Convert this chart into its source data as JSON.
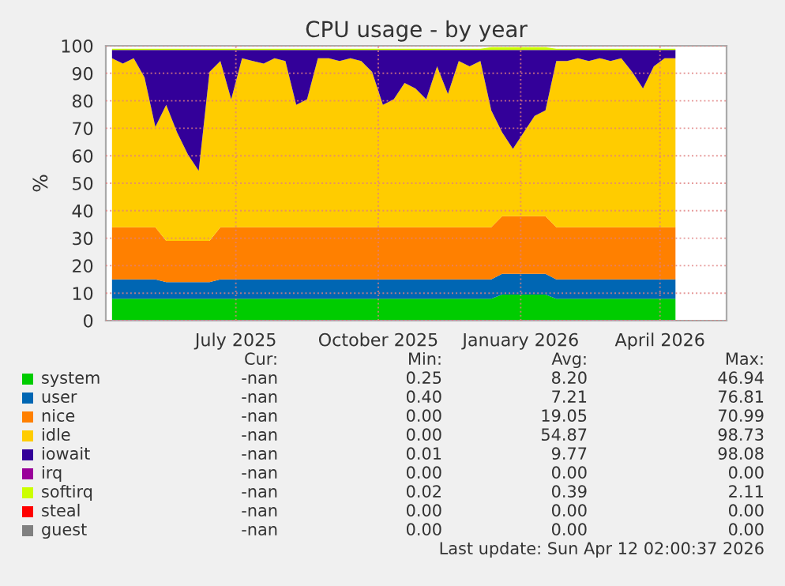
{
  "chart_data": {
    "type": "area",
    "stacked": true,
    "title": "CPU usage - by year",
    "ylabel": "%",
    "x": [
      "2025-04-12",
      "2025-04-19",
      "2025-04-26",
      "2025-05-03",
      "2025-05-10",
      "2025-05-17",
      "2025-05-24",
      "2025-05-31",
      "2025-06-07",
      "2025-06-14",
      "2025-06-21",
      "2025-06-28",
      "2025-07-05",
      "2025-07-12",
      "2025-07-19",
      "2025-07-26",
      "2025-08-02",
      "2025-08-09",
      "2025-08-16",
      "2025-08-23",
      "2025-08-30",
      "2025-09-06",
      "2025-09-13",
      "2025-09-20",
      "2025-09-27",
      "2025-10-04",
      "2025-10-11",
      "2025-10-18",
      "2025-10-25",
      "2025-11-01",
      "2025-11-08",
      "2025-11-15",
      "2025-11-22",
      "2025-11-29",
      "2025-12-06",
      "2025-12-13",
      "2025-12-20",
      "2025-12-27",
      "2026-01-03",
      "2026-01-10",
      "2026-01-17",
      "2026-01-24",
      "2026-01-31",
      "2026-02-07",
      "2026-02-14",
      "2026-02-21",
      "2026-02-28",
      "2026-03-07",
      "2026-03-14",
      "2026-03-21",
      "2026-03-28",
      "2026-04-04",
      "2026-04-11"
    ],
    "series": [
      {
        "name": "system",
        "color": "#00cc00",
        "values": [
          8,
          8,
          8,
          8,
          8,
          8,
          8,
          8,
          8,
          8,
          8,
          8,
          8,
          8,
          8,
          8,
          8,
          8,
          8,
          8,
          8,
          8,
          8,
          8,
          8,
          8,
          8,
          8,
          8,
          8,
          8,
          8,
          8,
          8,
          8,
          8,
          9.5,
          9.5,
          9.5,
          9.5,
          9.5,
          8,
          8,
          8,
          8,
          8,
          8,
          8,
          8,
          8,
          8,
          8,
          8
        ]
      },
      {
        "name": "user",
        "color": "#0066b3",
        "values": [
          7,
          7,
          7,
          7,
          7,
          6,
          6,
          6,
          6,
          6,
          7,
          7,
          7,
          7,
          7,
          7,
          7,
          7,
          7,
          7,
          7,
          7,
          7,
          7,
          7,
          7,
          7,
          7,
          7,
          7,
          7,
          7,
          7,
          7,
          7,
          7,
          7.5,
          7.5,
          7.5,
          7.5,
          7.5,
          7,
          7,
          7,
          7,
          7,
          7,
          7,
          7,
          7,
          7,
          7,
          7
        ]
      },
      {
        "name": "nice",
        "color": "#ff8000",
        "values": [
          19,
          19,
          19,
          19,
          19,
          15,
          15,
          15,
          15,
          15,
          19,
          19,
          19,
          19,
          19,
          19,
          19,
          19,
          19,
          19,
          19,
          19,
          19,
          19,
          19,
          19,
          19,
          19,
          19,
          19,
          19,
          19,
          19,
          19,
          19,
          19,
          21,
          21,
          21,
          21,
          21,
          19,
          19,
          19,
          19,
          19,
          19,
          19,
          19,
          19,
          19,
          19,
          19
        ]
      },
      {
        "name": "idle",
        "color": "#ffcc00",
        "values": [
          61.5,
          59.5,
          61.5,
          54.5,
          36.5,
          49.5,
          39.5,
          31.5,
          25.5,
          61.5,
          60.5,
          46.5,
          61.5,
          60.5,
          59.5,
          61.5,
          60.5,
          44.5,
          46.5,
          61.5,
          61.5,
          60.5,
          61.5,
          60.5,
          56.5,
          44.5,
          46.5,
          52.5,
          50.5,
          46.5,
          58.5,
          48.5,
          60.5,
          58.5,
          60.5,
          42.5,
          30.5,
          24.5,
          30.5,
          36.5,
          38.5,
          60.5,
          60.5,
          61.5,
          60.5,
          61.5,
          60.5,
          61.5,
          56.5,
          50.5,
          58.5,
          61.5,
          61.5
        ]
      },
      {
        "name": "iowait",
        "color": "#330099",
        "values": [
          3,
          5,
          3,
          10,
          28,
          20,
          30,
          38,
          44,
          8,
          4,
          18,
          3,
          4,
          5,
          3,
          4,
          20,
          18,
          3,
          3,
          4,
          3,
          4,
          8,
          20,
          18,
          12,
          14,
          18,
          6,
          16,
          4,
          6,
          4,
          22,
          30,
          36,
          30,
          24,
          22,
          4,
          4,
          3,
          4,
          3,
          4,
          3,
          8,
          14,
          6,
          3,
          3
        ]
      },
      {
        "name": "irq",
        "color": "#990099",
        "values": [
          null,
          null,
          null,
          null,
          null,
          null,
          null,
          null,
          null,
          null,
          null,
          null,
          null,
          null,
          null,
          null,
          null,
          null,
          null,
          null,
          null,
          null,
          null,
          null,
          null,
          null,
          null,
          null,
          null,
          null,
          null,
          null,
          null,
          null,
          null,
          null,
          null,
          null,
          null,
          null,
          null,
          null,
          null,
          null,
          null,
          null,
          null,
          null,
          null,
          null,
          null,
          null,
          null
        ]
      },
      {
        "name": "softirq",
        "color": "#ccff00",
        "values": [
          0.4,
          0.4,
          0.4,
          0.4,
          0.4,
          0.4,
          0.4,
          0.4,
          0.4,
          0.4,
          0.4,
          0.4,
          0.4,
          0.4,
          0.4,
          0.4,
          0.4,
          0.4,
          0.4,
          0.4,
          0.4,
          0.4,
          0.4,
          0.4,
          0.4,
          0.4,
          0.4,
          0.4,
          0.4,
          0.4,
          0.4,
          0.4,
          0.4,
          0.4,
          0.4,
          1,
          1,
          1,
          1,
          1,
          1,
          0.4,
          0.4,
          0.4,
          0.4,
          0.4,
          0.4,
          0.4,
          0.4,
          0.4,
          0.4,
          0.4,
          0.4
        ]
      },
      {
        "name": "steal",
        "color": "#ff0000",
        "values": [
          null,
          null,
          null,
          null,
          null,
          null,
          null,
          null,
          null,
          null,
          null,
          null,
          null,
          null,
          null,
          null,
          null,
          null,
          null,
          null,
          null,
          null,
          null,
          null,
          null,
          null,
          null,
          null,
          null,
          null,
          null,
          null,
          null,
          null,
          null,
          null,
          null,
          null,
          null,
          null,
          null,
          null,
          null,
          null,
          null,
          null,
          null,
          null,
          null,
          null,
          null,
          null,
          null
        ]
      },
      {
        "name": "guest",
        "color": "#808080",
        "values": [
          null,
          null,
          null,
          null,
          null,
          null,
          null,
          null,
          null,
          null,
          null,
          null,
          null,
          null,
          null,
          null,
          null,
          null,
          null,
          null,
          null,
          null,
          null,
          null,
          null,
          null,
          null,
          null,
          null,
          null,
          null,
          null,
          null,
          null,
          null,
          null,
          null,
          null,
          null,
          null,
          null,
          null,
          null,
          null,
          null,
          null,
          null,
          null,
          null,
          null,
          null,
          null,
          null
        ]
      }
    ],
    "xlim": [
      "2025-04-08",
      "2026-05-14"
    ],
    "xticks": [
      {
        "value": "2025-07-01",
        "label": "July 2025"
      },
      {
        "value": "2025-10-01",
        "label": "October 2025"
      },
      {
        "value": "2026-01-01",
        "label": "January 2026"
      },
      {
        "value": "2026-04-01",
        "label": "April 2026"
      }
    ],
    "ylim": [
      0,
      100
    ],
    "yticks": [
      0,
      10,
      20,
      30,
      40,
      50,
      60,
      70,
      80,
      90,
      100
    ],
    "grid": true,
    "legend": "bottom",
    "annotations": [
      "Cur:",
      "Min:",
      "Avg:",
      "Max:",
      "-nan",
      "0.25",
      "8.20",
      "46.94",
      "-nan",
      "0.40",
      "7.21",
      "76.81",
      "-nan",
      "0.00",
      "19.05",
      "70.99",
      "-nan",
      "0.00",
      "54.87",
      "98.73",
      "-nan",
      "0.01",
      "9.77",
      "98.08",
      "-nan",
      "0.00",
      "0.00",
      "0.00",
      "-nan",
      "0.02",
      "0.39",
      "2.11",
      "-nan",
      "0.00",
      "0.00",
      "0.00",
      "-nan",
      "0.00",
      "0.00",
      "0.00",
      "Last update: Sun Apr 12 02:00:37 2026"
    ]
  }
}
